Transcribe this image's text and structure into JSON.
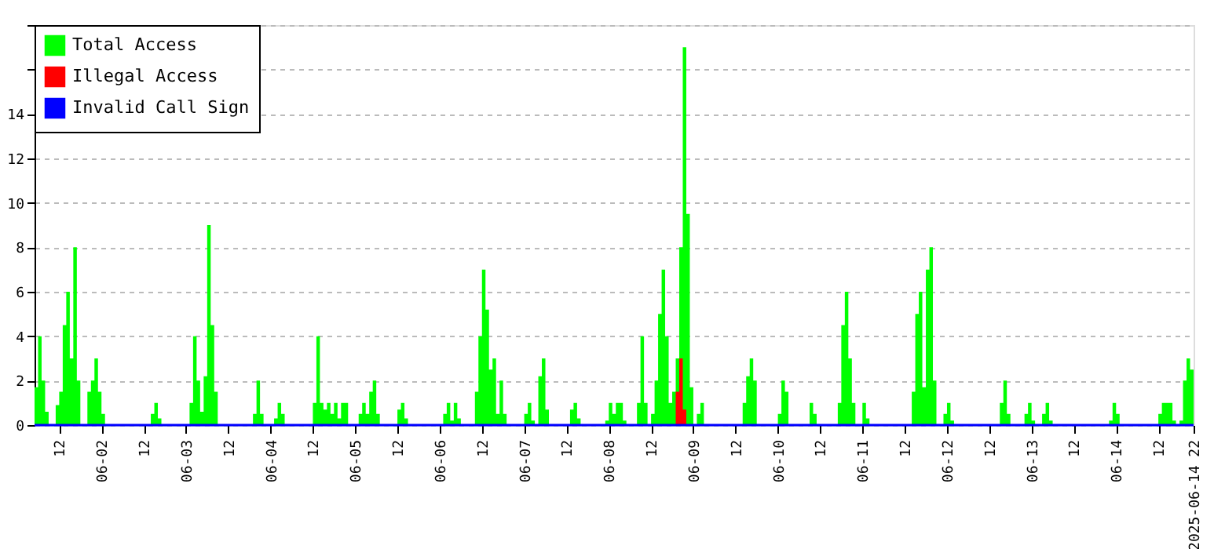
{
  "chart_data": {
    "type": "area",
    "xlim": [
      "2025-06-01T05:00",
      "2025-06-14T22:00"
    ],
    "xticks": [
      {
        "value": "2025-06-01T12:00",
        "label": "12"
      },
      {
        "value": "2025-06-02T00:00",
        "label": "06-02"
      },
      {
        "value": "2025-06-02T12:00",
        "label": "12"
      },
      {
        "value": "2025-06-03T00:00",
        "label": "06-03"
      },
      {
        "value": "2025-06-03T12:00",
        "label": "12"
      },
      {
        "value": "2025-06-04T00:00",
        "label": "06-04"
      },
      {
        "value": "2025-06-04T12:00",
        "label": "12"
      },
      {
        "value": "2025-06-05T00:00",
        "label": "06-05"
      },
      {
        "value": "2025-06-05T12:00",
        "label": "12"
      },
      {
        "value": "2025-06-06T00:00",
        "label": "06-06"
      },
      {
        "value": "2025-06-06T12:00",
        "label": "12"
      },
      {
        "value": "2025-06-07T00:00",
        "label": "06-07"
      },
      {
        "value": "2025-06-07T12:00",
        "label": "12"
      },
      {
        "value": "2025-06-08T00:00",
        "label": "06-08"
      },
      {
        "value": "2025-06-08T12:00",
        "label": "12"
      },
      {
        "value": "2025-06-09T00:00",
        "label": "06-09"
      },
      {
        "value": "2025-06-09T12:00",
        "label": "12"
      },
      {
        "value": "2025-06-10T00:00",
        "label": "06-10"
      },
      {
        "value": "2025-06-10T12:00",
        "label": "12"
      },
      {
        "value": "2025-06-11T00:00",
        "label": "06-11"
      },
      {
        "value": "2025-06-11T12:00",
        "label": "12"
      },
      {
        "value": "2025-06-12T00:00",
        "label": "06-12"
      },
      {
        "value": "2025-06-12T12:00",
        "label": "12"
      },
      {
        "value": "2025-06-13T00:00",
        "label": "06-13"
      },
      {
        "value": "2025-06-13T12:00",
        "label": "12"
      },
      {
        "value": "2025-06-14T00:00",
        "label": "06-14"
      },
      {
        "value": "2025-06-14T12:00",
        "label": "12"
      },
      {
        "value": "2025-06-14T22:00",
        "label": "2025-06-14 22"
      }
    ],
    "ylim": [
      0,
      18
    ],
    "yticks": [
      0,
      2,
      4,
      6,
      8,
      10,
      12,
      14,
      {
        "value": 16,
        "label": null
      },
      {
        "value": 18,
        "label": null
      }
    ],
    "grid": "y",
    "legend": "top left",
    "series": [
      {
        "name": "Total Access",
        "color": "#00ff00",
        "x": [
          "2025-06-01T05:00",
          "2025-06-01T06:00",
          "2025-06-01T07:00",
          "2025-06-01T08:00",
          "2025-06-01T09:00",
          "2025-06-01T10:00",
          "2025-06-01T11:00",
          "2025-06-01T12:00",
          "2025-06-01T13:00",
          "2025-06-01T14:00",
          "2025-06-01T15:00",
          "2025-06-01T16:00",
          "2025-06-01T17:00",
          "2025-06-01T18:00",
          "2025-06-01T19:00",
          "2025-06-01T20:00",
          "2025-06-01T21:00",
          "2025-06-01T22:00",
          "2025-06-01T23:00",
          "2025-06-02T00:00",
          "2025-06-02T01:00",
          "2025-06-02T13:00",
          "2025-06-02T14:00",
          "2025-06-02T15:00",
          "2025-06-02T16:00",
          "2025-06-02T17:00",
          "2025-06-03T00:00",
          "2025-06-03T01:00",
          "2025-06-03T02:00",
          "2025-06-03T03:00",
          "2025-06-03T04:00",
          "2025-06-03T05:00",
          "2025-06-03T06:00",
          "2025-06-03T07:00",
          "2025-06-03T08:00",
          "2025-06-03T09:00",
          "2025-06-03T18:00",
          "2025-06-03T19:00",
          "2025-06-03T20:00",
          "2025-06-03T21:00",
          "2025-06-03T22:00",
          "2025-06-04T00:00",
          "2025-06-04T01:00",
          "2025-06-04T02:00",
          "2025-06-04T03:00",
          "2025-06-04T04:00",
          "2025-06-04T11:00",
          "2025-06-04T12:00",
          "2025-06-04T13:00",
          "2025-06-04T14:00",
          "2025-06-04T15:00",
          "2025-06-04T16:00",
          "2025-06-04T17:00",
          "2025-06-04T18:00",
          "2025-06-04T19:00",
          "2025-06-04T20:00",
          "2025-06-04T21:00",
          "2025-06-04T22:00",
          "2025-06-05T00:00",
          "2025-06-05T01:00",
          "2025-06-05T02:00",
          "2025-06-05T03:00",
          "2025-06-05T04:00",
          "2025-06-05T05:00",
          "2025-06-05T06:00",
          "2025-06-05T07:00",
          "2025-06-05T11:00",
          "2025-06-05T12:00",
          "2025-06-05T13:00",
          "2025-06-05T14:00",
          "2025-06-05T15:00",
          "2025-06-06T00:00",
          "2025-06-06T01:00",
          "2025-06-06T02:00",
          "2025-06-06T03:00",
          "2025-06-06T04:00",
          "2025-06-06T05:00",
          "2025-06-06T06:00",
          "2025-06-06T09:00",
          "2025-06-06T10:00",
          "2025-06-06T11:00",
          "2025-06-06T12:00",
          "2025-06-06T13:00",
          "2025-06-06T14:00",
          "2025-06-06T15:00",
          "2025-06-06T16:00",
          "2025-06-06T17:00",
          "2025-06-06T18:00",
          "2025-06-06T19:00",
          "2025-06-06T23:00",
          "2025-06-07T00:00",
          "2025-06-07T01:00",
          "2025-06-07T02:00",
          "2025-06-07T03:00",
          "2025-06-07T04:00",
          "2025-06-07T05:00",
          "2025-06-07T06:00",
          "2025-06-07T07:00",
          "2025-06-07T12:00",
          "2025-06-07T13:00",
          "2025-06-07T14:00",
          "2025-06-07T15:00",
          "2025-06-07T16:00",
          "2025-06-07T22:00",
          "2025-06-07T23:00",
          "2025-06-08T00:00",
          "2025-06-08T01:00",
          "2025-06-08T02:00",
          "2025-06-08T03:00",
          "2025-06-08T04:00",
          "2025-06-08T05:00",
          "2025-06-08T07:00",
          "2025-06-08T08:00",
          "2025-06-08T09:00",
          "2025-06-08T10:00",
          "2025-06-08T11:00",
          "2025-06-08T12:00",
          "2025-06-08T13:00",
          "2025-06-08T14:00",
          "2025-06-08T15:00",
          "2025-06-08T16:00",
          "2025-06-08T17:00",
          "2025-06-08T18:00",
          "2025-06-08T19:00",
          "2025-06-08T20:00",
          "2025-06-08T21:00",
          "2025-06-08T22:00",
          "2025-06-08T23:00",
          "2025-06-09T00:00",
          "2025-06-09T01:00",
          "2025-06-09T02:00",
          "2025-06-09T03:00",
          "2025-06-09T13:00",
          "2025-06-09T14:00",
          "2025-06-09T15:00",
          "2025-06-09T16:00",
          "2025-06-09T17:00",
          "2025-06-09T18:00",
          "2025-06-09T23:00",
          "2025-06-10T00:00",
          "2025-06-10T01:00",
          "2025-06-10T02:00",
          "2025-06-10T03:00",
          "2025-06-10T08:00",
          "2025-06-10T09:00",
          "2025-06-10T10:00",
          "2025-06-10T11:00",
          "2025-06-10T16:00",
          "2025-06-10T17:00",
          "2025-06-10T18:00",
          "2025-06-10T19:00",
          "2025-06-10T20:00",
          "2025-06-10T21:00",
          "2025-06-10T22:00",
          "2025-06-10T23:00",
          "2025-06-11T00:00",
          "2025-06-11T01:00",
          "2025-06-11T02:00",
          "2025-06-11T13:00",
          "2025-06-11T14:00",
          "2025-06-11T15:00",
          "2025-06-11T16:00",
          "2025-06-11T17:00",
          "2025-06-11T18:00",
          "2025-06-11T19:00",
          "2025-06-11T20:00",
          "2025-06-11T21:00",
          "2025-06-11T22:00",
          "2025-06-11T23:00",
          "2025-06-12T00:00",
          "2025-06-12T01:00",
          "2025-06-12T02:00",
          "2025-06-12T14:00",
          "2025-06-12T15:00",
          "2025-06-12T16:00",
          "2025-06-12T17:00",
          "2025-06-12T18:00",
          "2025-06-12T21:00",
          "2025-06-12T22:00",
          "2025-06-12T23:00",
          "2025-06-13T00:00",
          "2025-06-13T01:00",
          "2025-06-13T02:00",
          "2025-06-13T03:00",
          "2025-06-13T04:00",
          "2025-06-13T05:00",
          "2025-06-13T06:00",
          "2025-06-13T21:00",
          "2025-06-13T22:00",
          "2025-06-13T23:00",
          "2025-06-14T00:00",
          "2025-06-14T01:00",
          "2025-06-14T11:00",
          "2025-06-14T12:00",
          "2025-06-14T13:00",
          "2025-06-14T14:00",
          "2025-06-14T15:00",
          "2025-06-14T16:00",
          "2025-06-14T17:00",
          "2025-06-14T18:00",
          "2025-06-14T19:00",
          "2025-06-14T20:00",
          "2025-06-14T21:00",
          "2025-06-14T22:00"
        ],
        "values": [
          1.7,
          4,
          2,
          0.6,
          0,
          0,
          0.9,
          1.5,
          4.5,
          6,
          3,
          8,
          2,
          0,
          0,
          1.5,
          2,
          3,
          1.5,
          0.5,
          0,
          0,
          0.5,
          1,
          0.3,
          0,
          0,
          1,
          4,
          2,
          0.6,
          2.2,
          9,
          4.5,
          1.5,
          0,
          0,
          0.5,
          2,
          0.5,
          0,
          0,
          0.3,
          1,
          0.5,
          0,
          0,
          1,
          4,
          1,
          0.7,
          1,
          0.5,
          1,
          0.3,
          1,
          1,
          0,
          0,
          0.5,
          1,
          0.5,
          1.5,
          2,
          0.5,
          0,
          0,
          0.7,
          1,
          0.3,
          0,
          0,
          0.5,
          1,
          0.2,
          1,
          0.3,
          0,
          0,
          1.5,
          4,
          7,
          5.2,
          2.5,
          3,
          0.5,
          2,
          0.5,
          0,
          0,
          0.5,
          1,
          0.2,
          0,
          2.2,
          3,
          0.7,
          0,
          0,
          0.7,
          1,
          0.3,
          0,
          0,
          0.2,
          1,
          0.5,
          1,
          1,
          0.2,
          0,
          0,
          1,
          4,
          1,
          0,
          0.5,
          2,
          5,
          7,
          4,
          1,
          1.5,
          3,
          8,
          17,
          9.5,
          1.7,
          0,
          0.5,
          1,
          0,
          0,
          1,
          2.2,
          3,
          2,
          0,
          0,
          0.5,
          2,
          1.5,
          0,
          0,
          1,
          0.5,
          0,
          0,
          1,
          4.5,
          6,
          3,
          1,
          0,
          0,
          1,
          0.3,
          0,
          0,
          1.5,
          5,
          6,
          1.7,
          7,
          8,
          2,
          0,
          0,
          0.5,
          1,
          0.2,
          0,
          0,
          1,
          2,
          0.5,
          0,
          0,
          0.5,
          1,
          0.2,
          0,
          0,
          0.5,
          1,
          0.2,
          0,
          0,
          0.2,
          1,
          0.5,
          0,
          0,
          0.5,
          1,
          1,
          1,
          0.2,
          0,
          0.2,
          2,
          3,
          2.5,
          1.5
        ]
      },
      {
        "name": "Illegal Access",
        "color": "#ff0000",
        "x": [
          "2025-06-08T18:00",
          "2025-06-08T19:00",
          "2025-06-08T20:00",
          "2025-06-08T21:00",
          "2025-06-08T22:00"
        ],
        "values": [
          0,
          1.5,
          3,
          0.7,
          0
        ]
      },
      {
        "name": "Invalid Call Sign",
        "color": "#0000ff",
        "type": "line",
        "x": [
          "2025-06-01T05:00",
          "2025-06-14T22:00"
        ],
        "values": [
          0,
          0
        ]
      }
    ]
  }
}
